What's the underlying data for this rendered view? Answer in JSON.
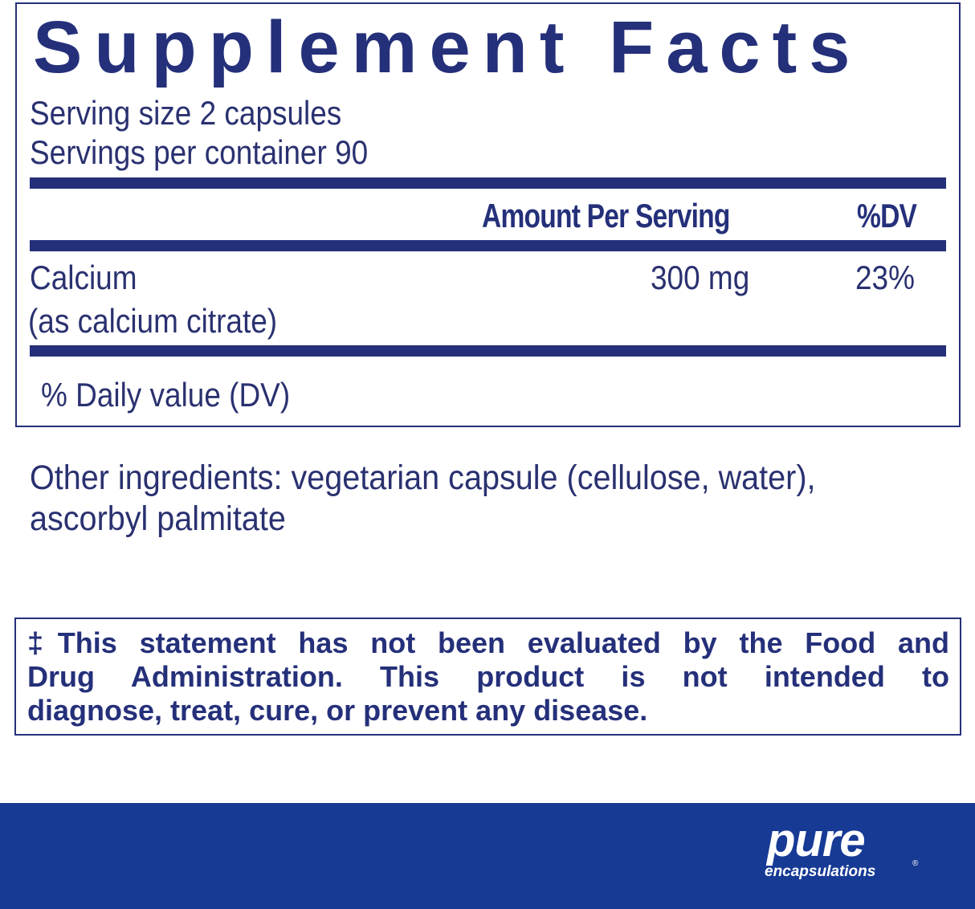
{
  "facts": {
    "title": "Supplement Facts",
    "serving_size": "Serving size  2 capsules",
    "servings_per_container": "Servings per container  90",
    "header_amount": "Amount Per Serving",
    "header_dv": "%DV",
    "rows": [
      {
        "name": "Calcium",
        "detail": "(as calcium citrate)",
        "amount": "300 mg",
        "dv": "23%"
      }
    ],
    "footnote": "% Daily value (DV)"
  },
  "other_ingredients": {
    "line1": "Other ingredients: vegetarian capsule (cellulose, water),",
    "line2": "ascorbyl palmitate"
  },
  "disclaimer": {
    "line1": "‡This statement has not been evaluated by the Food and",
    "line2": "Drug Administration. This product is not intended to",
    "line3": "diagnose, treat, cure, or prevent any disease."
  },
  "brand": {
    "name": "pure",
    "sub": "encapsulations",
    "mark": "®"
  },
  "colors": {
    "navy": "#25307a",
    "footer": "#173a95"
  }
}
